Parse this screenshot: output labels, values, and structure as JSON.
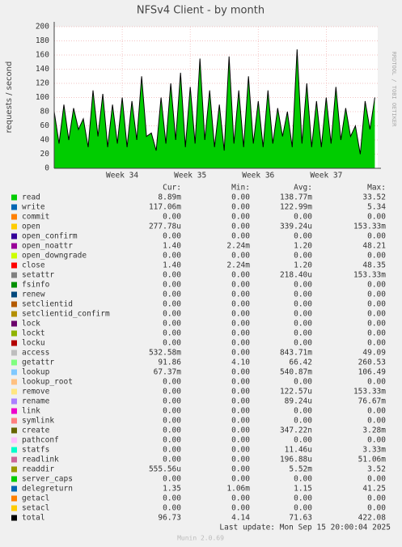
{
  "chart_data": {
    "type": "line",
    "title": "NFSv4 Client - by month",
    "ylabel": "requests / second",
    "side_label": "RRDTOOL / TOBI OETIKER",
    "xlim": [
      0,
      33.3
    ],
    "xticks": [
      {
        "value": 7,
        "label": "Week 34"
      },
      {
        "value": 14,
        "label": "Week 35"
      },
      {
        "value": 21,
        "label": "Week 36"
      },
      {
        "value": 28,
        "label": "Week 37"
      }
    ],
    "ylim": [
      0,
      200
    ],
    "yticks": [
      0,
      20,
      40,
      60,
      80,
      100,
      120,
      140,
      160,
      180,
      200
    ],
    "grid": true,
    "color": "#000000",
    "fill_color": "#00cc00",
    "x": [
      0,
      0.5,
      1,
      1.5,
      2,
      2.5,
      3,
      3.5,
      4,
      4.5,
      5,
      5.5,
      6,
      6.5,
      7,
      7.5,
      8,
      8.5,
      9,
      9.5,
      10,
      10.5,
      11,
      11.5,
      12,
      12.5,
      13,
      13.5,
      14,
      14.5,
      15,
      15.5,
      16,
      16.5,
      17,
      17.5,
      18,
      18.5,
      19,
      19.5,
      20,
      20.5,
      21,
      21.5,
      22,
      22.5,
      23,
      23.5,
      24,
      24.5,
      25,
      25.5,
      26,
      26.5,
      27,
      27.5,
      28,
      28.5,
      29,
      29.5,
      30,
      30.5,
      31,
      31.5,
      32,
      32.5,
      33
    ],
    "values": [
      80,
      35,
      90,
      40,
      85,
      55,
      70,
      30,
      110,
      45,
      105,
      30,
      90,
      35,
      100,
      30,
      95,
      40,
      130,
      45,
      50,
      25,
      100,
      35,
      120,
      40,
      135,
      30,
      115,
      35,
      155,
      40,
      110,
      30,
      90,
      25,
      158,
      35,
      110,
      30,
      130,
      35,
      95,
      30,
      110,
      35,
      85,
      45,
      80,
      30,
      168,
      35,
      120,
      30,
      95,
      30,
      100,
      35,
      115,
      40,
      85,
      45,
      60,
      20,
      95,
      55,
      100
    ],
    "legend_header": [
      "Cur:",
      "Min:",
      "Avg:",
      "Max:"
    ],
    "legend": [
      {
        "name": "read",
        "color": "#00cc00",
        "cur": "8.89m",
        "min": "0.00",
        "avg": "138.77m",
        "max": "33.52"
      },
      {
        "name": "write",
        "color": "#0066b3",
        "cur": "117.06m",
        "min": "0.00",
        "avg": "122.99m",
        "max": "5.34"
      },
      {
        "name": "commit",
        "color": "#ff8000",
        "cur": "0.00",
        "min": "0.00",
        "avg": "0.00",
        "max": "0.00"
      },
      {
        "name": "open",
        "color": "#ffcc00",
        "cur": "277.78u",
        "min": "0.00",
        "avg": "339.24u",
        "max": "153.33m"
      },
      {
        "name": "open_confirm",
        "color": "#330099",
        "cur": "0.00",
        "min": "0.00",
        "avg": "0.00",
        "max": "0.00"
      },
      {
        "name": "open_noattr",
        "color": "#990099",
        "cur": "1.40",
        "min": "2.24m",
        "avg": "1.20",
        "max": "48.21"
      },
      {
        "name": "open_downgrade",
        "color": "#ccff00",
        "cur": "0.00",
        "min": "0.00",
        "avg": "0.00",
        "max": "0.00"
      },
      {
        "name": "close",
        "color": "#ff0000",
        "cur": "1.40",
        "min": "2.24m",
        "avg": "1.20",
        "max": "48.35"
      },
      {
        "name": "setattr",
        "color": "#808080",
        "cur": "0.00",
        "min": "0.00",
        "avg": "218.40u",
        "max": "153.33m"
      },
      {
        "name": "fsinfo",
        "color": "#008f00",
        "cur": "0.00",
        "min": "0.00",
        "avg": "0.00",
        "max": "0.00"
      },
      {
        "name": "renew",
        "color": "#00487d",
        "cur": "0.00",
        "min": "0.00",
        "avg": "0.00",
        "max": "0.00"
      },
      {
        "name": "setclientid",
        "color": "#b35a00",
        "cur": "0.00",
        "min": "0.00",
        "avg": "0.00",
        "max": "0.00"
      },
      {
        "name": "setclientid_confirm",
        "color": "#b38f00",
        "cur": "0.00",
        "min": "0.00",
        "avg": "0.00",
        "max": "0.00"
      },
      {
        "name": "lock",
        "color": "#6b006b",
        "cur": "0.00",
        "min": "0.00",
        "avg": "0.00",
        "max": "0.00"
      },
      {
        "name": "lockt",
        "color": "#8fb300",
        "cur": "0.00",
        "min": "0.00",
        "avg": "0.00",
        "max": "0.00"
      },
      {
        "name": "locku",
        "color": "#b30000",
        "cur": "0.00",
        "min": "0.00",
        "avg": "0.00",
        "max": "0.00"
      },
      {
        "name": "access",
        "color": "#bebebe",
        "cur": "532.58m",
        "min": "0.00",
        "avg": "843.71m",
        "max": "49.09"
      },
      {
        "name": "getattr",
        "color": "#80ff80",
        "cur": "91.86",
        "min": "4.10",
        "avg": "66.42",
        "max": "260.53"
      },
      {
        "name": "lookup",
        "color": "#80c9ff",
        "cur": "67.37m",
        "min": "0.00",
        "avg": "540.87m",
        "max": "106.49"
      },
      {
        "name": "lookup_root",
        "color": "#ffc080",
        "cur": "0.00",
        "min": "0.00",
        "avg": "0.00",
        "max": "0.00"
      },
      {
        "name": "remove",
        "color": "#ffe680",
        "cur": "0.00",
        "min": "0.00",
        "avg": "122.57u",
        "max": "153.33m"
      },
      {
        "name": "rename",
        "color": "#aa80ff",
        "cur": "0.00",
        "min": "0.00",
        "avg": "89.24u",
        "max": "76.67m"
      },
      {
        "name": "link",
        "color": "#ee00cc",
        "cur": "0.00",
        "min": "0.00",
        "avg": "0.00",
        "max": "0.00"
      },
      {
        "name": "symlink",
        "color": "#ff8080",
        "cur": "0.00",
        "min": "0.00",
        "avg": "0.00",
        "max": "0.00"
      },
      {
        "name": "create",
        "color": "#666600",
        "cur": "0.00",
        "min": "0.00",
        "avg": "347.22n",
        "max": "3.28m"
      },
      {
        "name": "pathconf",
        "color": "#ffbfff",
        "cur": "0.00",
        "min": "0.00",
        "avg": "0.00",
        "max": "0.00"
      },
      {
        "name": "statfs",
        "color": "#00ffcc",
        "cur": "0.00",
        "min": "0.00",
        "avg": "11.46u",
        "max": "3.33m"
      },
      {
        "name": "readlink",
        "color": "#cc6699",
        "cur": "0.00",
        "min": "0.00",
        "avg": "196.88u",
        "max": "51.06m"
      },
      {
        "name": "readdir",
        "color": "#999900",
        "cur": "555.56u",
        "min": "0.00",
        "avg": "5.52m",
        "max": "3.52"
      },
      {
        "name": "server_caps",
        "color": "#00cc00",
        "cur": "0.00",
        "min": "0.00",
        "avg": "0.00",
        "max": "0.00"
      },
      {
        "name": "delegreturn",
        "color": "#0066b3",
        "cur": "1.35",
        "min": "1.06m",
        "avg": "1.15",
        "max": "41.25"
      },
      {
        "name": "getacl",
        "color": "#ff8000",
        "cur": "0.00",
        "min": "0.00",
        "avg": "0.00",
        "max": "0.00"
      },
      {
        "name": "setacl",
        "color": "#ffcc00",
        "cur": "0.00",
        "min": "0.00",
        "avg": "0.00",
        "max": "0.00"
      },
      {
        "name": "total",
        "color": "#000000",
        "cur": "96.73",
        "min": "4.14",
        "avg": "71.63",
        "max": "422.08"
      }
    ],
    "last_update": "Last update: Mon Sep 15 20:00:04 2025",
    "footer": "Munin 2.0.69"
  }
}
